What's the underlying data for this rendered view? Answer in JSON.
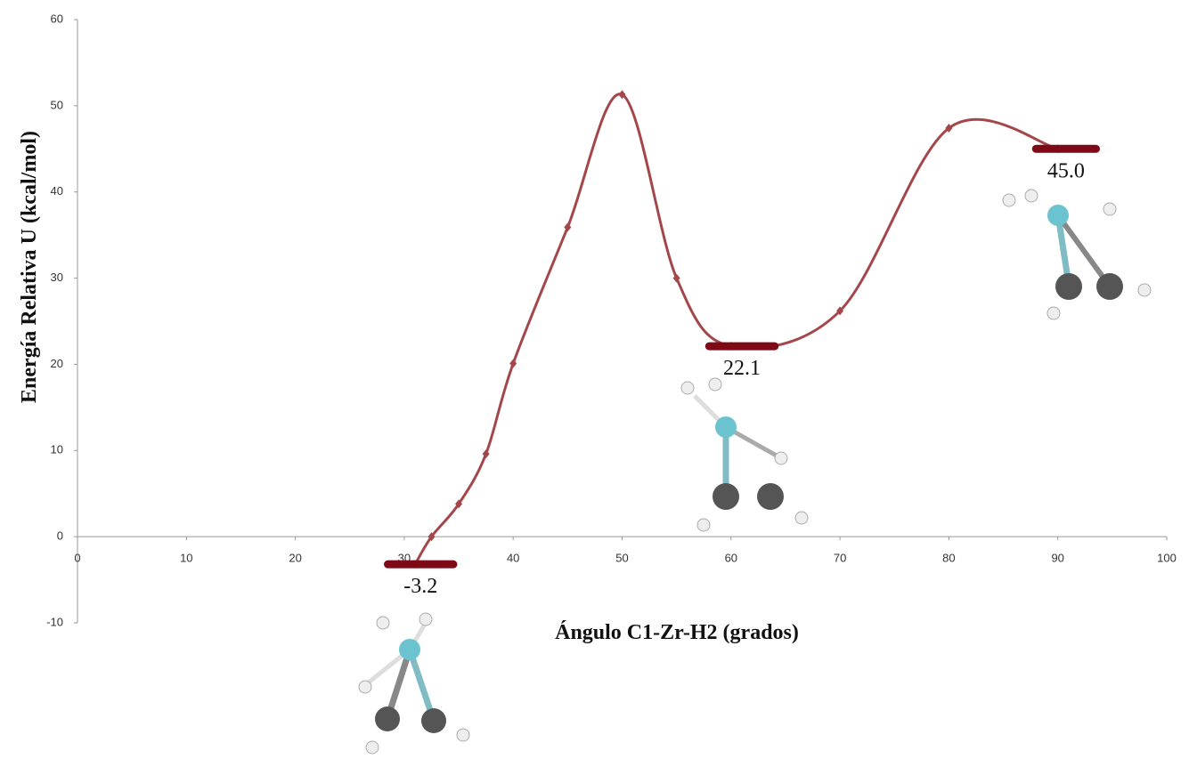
{
  "chart_data": {
    "type": "line",
    "x_label": "Ángulo C1-Zr-H2 (grados)",
    "y_label": "Energía Relativa U (kcal/mol)",
    "x": [
      31,
      32.5,
      35,
      37.5,
      40,
      45,
      50,
      55,
      60,
      70,
      80,
      90
    ],
    "series": [
      {
        "color": "#a3474b",
        "values": [
          -3.2,
          0,
          3.8,
          9.6,
          20.1,
          35.9,
          51.3,
          30,
          22.1,
          26.2,
          47.4,
          45.0
        ]
      }
    ],
    "levels": {
      "color": "#7d0a16",
      "values": [
        -3.2,
        22.1,
        45.0
      ],
      "value_labels": [
        "-3.2",
        "22.1",
        "45.0"
      ],
      "x_ranges": [
        [
          28.5,
          34.5
        ],
        [
          58,
          64
        ],
        [
          88,
          93.5
        ]
      ]
    },
    "xlim": [
      0,
      100
    ],
    "xticks": [
      0,
      10,
      20,
      30,
      40,
      50,
      60,
      70,
      80,
      90,
      100
    ],
    "ylim": [
      -10,
      60
    ],
    "yticks": [
      -10,
      0,
      10,
      20,
      30,
      40,
      50,
      60
    ]
  }
}
